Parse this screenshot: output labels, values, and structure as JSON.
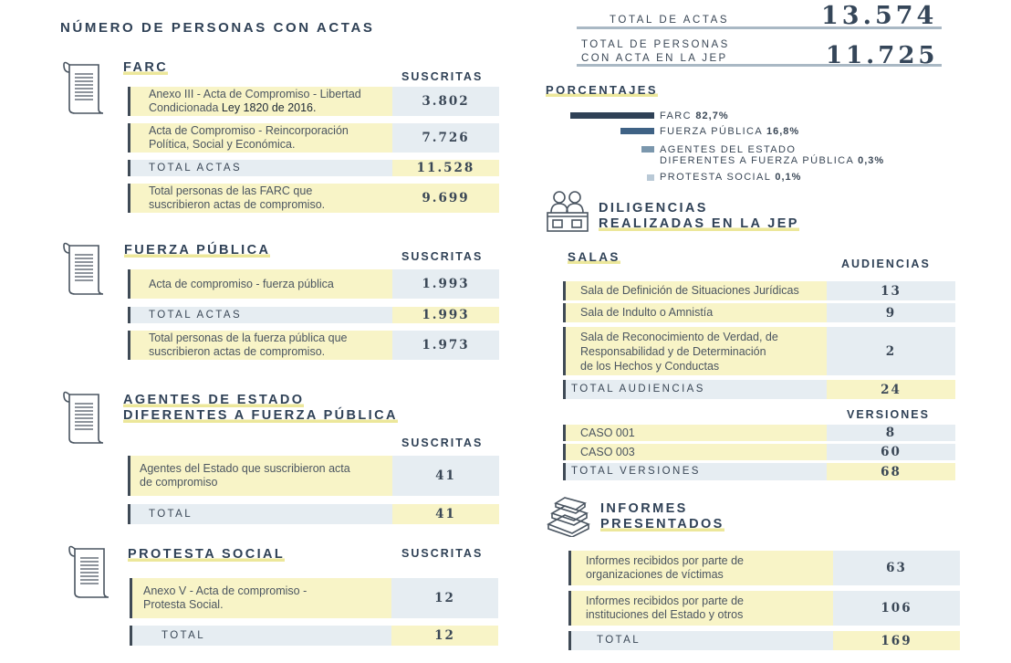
{
  "page_title": "NÚMERO DE PERSONAS CON ACTAS",
  "farc": {
    "title": "FARC",
    "col": "SUSCRITAS",
    "rows": [
      {
        "label1": "Anexo III - Acta de Compromiso - Libertad",
        "label2": "Condicionada ",
        "label2b": "Ley 1820 de 2016.",
        "value": "3.802"
      },
      {
        "label1": "Acta de Compromiso - Reincorporación",
        "label2": "Política, Social y Económica.",
        "value": "7.726"
      }
    ],
    "total_label": "TOTAL ACTAS",
    "total_value": "11.528",
    "persons_label1": "Total personas de las FARC que",
    "persons_label2": "suscribieron actas de compromiso.",
    "persons_value": "9.699"
  },
  "fuerza": {
    "title": "FUERZA PÚBLICA",
    "col": "SUSCRITAS",
    "row_label": "Acta de compromiso - fuerza pública",
    "row_value": "1.993",
    "total_label": "TOTAL ACTAS",
    "total_value": "1.993",
    "persons_label1": "Total personas de la fuerza pública que",
    "persons_label2": "suscribieron actas de compromiso.",
    "persons_value": "1.973"
  },
  "agentes": {
    "title1": "AGENTES DE ESTADO",
    "title2": "DIFERENTES A FUERZA PÚBLICA",
    "col": "SUSCRITAS",
    "row_label1": "Agentes del Estado que suscribieron acta",
    "row_label2": "de compromiso",
    "row_value": "41",
    "total_label": "TOTAL",
    "total_value": "41"
  },
  "protesta": {
    "title": "PROTESTA SOCIAL",
    "col": "SUSCRITAS",
    "row_label1": "Anexo V - Acta de compromiso -",
    "row_label2": "Protesta Social.",
    "row_value": "12",
    "total_label": "TOTAL",
    "total_value": "12"
  },
  "totals": {
    "actas_label": "TOTAL DE ACTAS",
    "actas_value": "13.574",
    "personas_label1": "TOTAL DE PERSONAS",
    "personas_label2": "CON ACTA EN LA JEP",
    "personas_value": "11.725"
  },
  "porcentajes": {
    "title": "PORCENTAJES",
    "items": [
      {
        "label": "FARC",
        "pct": "82,7%",
        "value": 82.7,
        "color": "#2f4156"
      },
      {
        "label": "FUERZA PÚBLICA",
        "pct": "16,8%",
        "value": 16.8,
        "color": "#3f6285"
      },
      {
        "label1": "AGENTES DEL ESTADO",
        "label2": "DIFERENTES A FUERZA PÚBLICA",
        "pct": "0,3%",
        "value": 0.3,
        "color": "#7b97ad"
      },
      {
        "label": "PROTESTA SOCIAL",
        "pct": "0,1%",
        "value": 0.1,
        "color": "#b9c9d6"
      }
    ]
  },
  "diligencias": {
    "title1": "DILIGENCIAS",
    "title2": "REALIZADAS EN LA JEP",
    "salas_title": "SALAS",
    "col_audiencias": "AUDIENCIAS",
    "salas": [
      {
        "label": "Sala de Definición de Situaciones Jurídicas",
        "value": "13"
      },
      {
        "label": "Sala de Indulto o Amnistía",
        "value": "9"
      },
      {
        "label1": "Sala de Reconocimiento de Verdad, de",
        "label2": "Responsabilidad y de Determinación",
        "label3": "de los Hechos y Conductas",
        "value": "2"
      }
    ],
    "total_audiencias_label": "TOTAL AUDIENCIAS",
    "total_audiencias_value": "24",
    "col_versiones": "VERSIONES",
    "casos": [
      {
        "label": "CASO 001",
        "value": "8"
      },
      {
        "label": "CASO 003",
        "value": "60"
      }
    ],
    "total_versiones_label": "TOTAL VERSIONES",
    "total_versiones_value": "68"
  },
  "informes": {
    "title1": "INFORMES",
    "title2": "PRESENTADOS",
    "rows": [
      {
        "label1": "Informes  recibidos por parte de",
        "label2": "organizaciones de víctimas",
        "value": "63"
      },
      {
        "label1": "Informes recibidos por parte de",
        "label2": "instituciones del Estado y otros",
        "value": "106"
      }
    ],
    "total_label": "TOTAL",
    "total_value": "169"
  }
}
